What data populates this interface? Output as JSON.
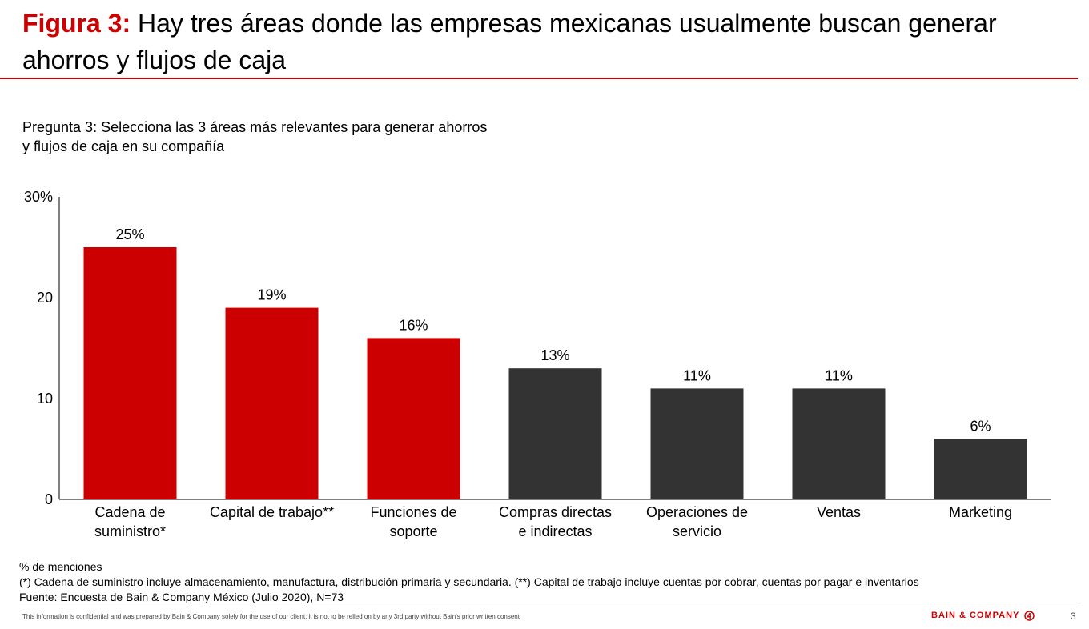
{
  "header": {
    "figure_label": "Figura 3:",
    "title_text": " Hay tres áreas donde las empresas mexicanas usualmente buscan generar ahorros y flujos de caja"
  },
  "question": {
    "line1": "Pregunta 3: Selecciona las 3 áreas más relevantes para generar ahorros",
    "line2": "y flujos de caja en su compañía"
  },
  "chart_data": {
    "type": "bar",
    "categories": [
      [
        "Cadena de",
        "suministro*"
      ],
      [
        "Capital de trabajo**"
      ],
      [
        "Funciones de",
        "soporte"
      ],
      [
        "Compras directas",
        "e indirectas"
      ],
      [
        "Operaciones de",
        "servicio"
      ],
      [
        "Ventas"
      ],
      [
        "Marketing"
      ]
    ],
    "values": [
      25,
      19,
      16,
      13,
      11,
      11,
      6
    ],
    "value_labels": [
      "25%",
      "19%",
      "16%",
      "13%",
      "11%",
      "11%",
      "6%"
    ],
    "bar_colors": [
      "#cc0000",
      "#cc0000",
      "#cc0000",
      "#333333",
      "#333333",
      "#333333",
      "#333333"
    ],
    "ylim": [
      0,
      30
    ],
    "yticks": [
      0,
      10,
      20,
      30
    ],
    "ytick_labels": [
      "0",
      "10",
      "20",
      "30%"
    ],
    "ylabel": "% de menciones",
    "grid": false
  },
  "notes": {
    "measure": "% de menciones",
    "footnote": "(*) Cadena de suministro incluye almacenamiento, manufactura, distribución primaria y secundaria. (**) Capital de trabajo incluye cuentas por cobrar, cuentas por pagar e inventarios",
    "source": "Fuente: Encuesta de Bain & Company México (Julio 2020), N=73"
  },
  "footer": {
    "disclaimer": "This information is confidential and was prepared by Bain & Company solely for the use of our client; it is not to be relied on by any 3rd party without Bain's prior written consent",
    "brand": "BAIN & COMPANY",
    "brand_icon": "bain-logo-icon",
    "page_number": "3"
  },
  "colors": {
    "accent": "#cc0000",
    "dark_bar": "#333333"
  }
}
